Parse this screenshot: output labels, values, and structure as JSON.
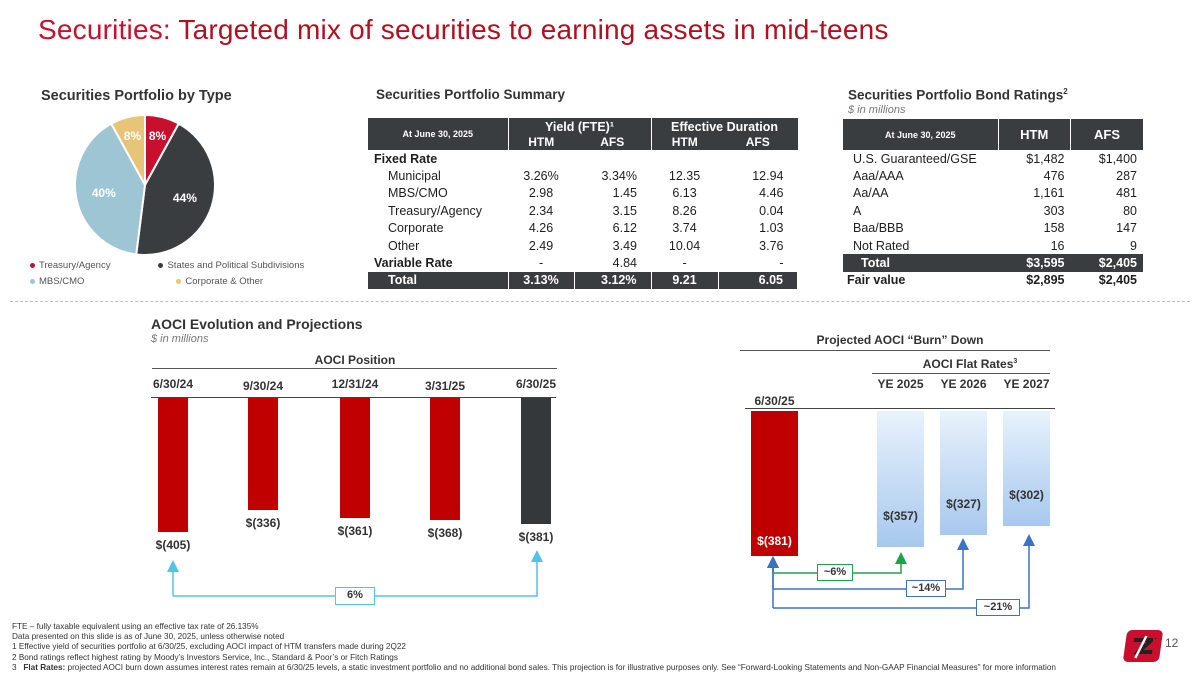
{
  "header": {
    "title_accent": "Securities:",
    "title_rest": " Targeted mix of securities to earning assets in mid-teens"
  },
  "pie": {
    "heading": "Securities Portfolio by Type",
    "slices": [
      {
        "name": "Treasury/Agency",
        "value": 8,
        "label": "8%",
        "color": "#c8102e"
      },
      {
        "name": "States and Political Subdivisions",
        "value": 44,
        "label": "44%",
        "color": "#3a3d40"
      },
      {
        "name": "MBS/CMO",
        "value": 40,
        "label": "40%",
        "color": "#9ec5d3"
      },
      {
        "name": "Corporate & Other",
        "value": 8,
        "label": "8%",
        "color": "#e8c477"
      }
    ],
    "legend": [
      "Treasury/Agency",
      "States and Political Subdivisions",
      "MBS/CMO",
      "Corporate & Other"
    ]
  },
  "summary": {
    "heading": "Securities Portfolio Summary",
    "corner": "At June 30, 2025",
    "group1": "Yield (FTE)¹",
    "group2": "Effective Duration",
    "cols": [
      "HTM",
      "AFS",
      "HTM",
      "AFS"
    ],
    "rows": [
      {
        "label": "Fixed Rate",
        "vals": [
          "",
          "",
          "",
          ""
        ],
        "style": "bold"
      },
      {
        "label": "Municipal",
        "vals": [
          "3.26%",
          "3.34%",
          "12.35",
          "12.94"
        ],
        "style": "indent"
      },
      {
        "label": "MBS/CMO",
        "vals": [
          "2.98",
          "1.45",
          "6.13",
          "4.46"
        ],
        "style": "indent"
      },
      {
        "label": "Treasury/Agency",
        "vals": [
          "2.34",
          "3.15",
          "8.26",
          "0.04"
        ],
        "style": "indent"
      },
      {
        "label": "Corporate",
        "vals": [
          "4.26",
          "6.12",
          "3.74",
          "1.03"
        ],
        "style": "indent"
      },
      {
        "label": "Other",
        "vals": [
          "2.49",
          "3.49",
          "10.04",
          "3.76"
        ],
        "style": "indent"
      },
      {
        "label": "Variable Rate",
        "vals": [
          "-",
          "4.84",
          "-",
          "-"
        ],
        "style": "bold"
      },
      {
        "label": "Total",
        "vals": [
          "3.13%",
          "3.12%",
          "9.21",
          "6.05"
        ],
        "style": "total"
      }
    ]
  },
  "ratings": {
    "heading": "Securities Portfolio Bond Ratings",
    "heading_sup": "2",
    "subheading": "$ in millions",
    "corner": "At June 30, 2025",
    "cols": [
      "HTM",
      "AFS"
    ],
    "rows": [
      {
        "label": "U.S. Guaranteed/GSE",
        "vals": [
          "$1,482",
          "$1,400"
        ]
      },
      {
        "label": "Aaa/AAA",
        "vals": [
          "476",
          "287"
        ]
      },
      {
        "label": "Aa/AA",
        "vals": [
          "1,161",
          "481"
        ]
      },
      {
        "label": "A",
        "vals": [
          "303",
          "80"
        ]
      },
      {
        "label": "Baa/BBB",
        "vals": [
          "158",
          "147"
        ]
      },
      {
        "label": "Not Rated",
        "vals": [
          "16",
          "9"
        ]
      }
    ],
    "total": {
      "label": "Total",
      "vals": [
        "$3,595",
        "$2,405"
      ]
    },
    "fair": {
      "label": "Fair value",
      "vals": [
        "$2,895",
        "$2,405"
      ]
    }
  },
  "aoci": {
    "heading": "AOCI Evolution and Projections",
    "subheading": "$ in millions",
    "position_title": "AOCI Position",
    "change_label": "6%"
  },
  "burn": {
    "title": "Projected AOCI “Burn” Down",
    "flat_title": "AOCI Flat Rates",
    "flat_sup": "3",
    "pills": [
      "~6%",
      "~14%",
      "~21%"
    ]
  },
  "chart_data": [
    {
      "type": "bar",
      "title": "AOCI Position",
      "categories": [
        "6/30/24",
        "9/30/24",
        "12/31/24",
        "3/31/25",
        "6/30/25"
      ],
      "values": [
        -405,
        -336,
        -361,
        -368,
        -381
      ],
      "labels": [
        "$(405)",
        "$(336)",
        "$(361)",
        "$(368)",
        "$(381)"
      ],
      "colors": [
        "#c00000",
        "#c00000",
        "#c00000",
        "#c00000",
        "#35383b"
      ]
    },
    {
      "type": "bar",
      "title": "Projected AOCI “Burn” Down",
      "categories": [
        "6/30/25",
        "YE 2025",
        "YE 2026",
        "YE 2027"
      ],
      "values": [
        -381,
        -357,
        -327,
        -302
      ],
      "labels": [
        "$(381)",
        "$(357)",
        "$(327)",
        "$(302)"
      ],
      "colors": [
        "#c00000",
        "#bcd6f2",
        "#bcd6f2",
        "#bcd6f2"
      ]
    }
  ],
  "footnotes": [
    "FTE – fully taxable equivalent using an effective tax rate of 26.135%",
    "Data presented on this slide is as of June 30, 2025, unless otherwise noted",
    "1   Effective yield of securities portfolio at 6/30/25, excluding AOCI impact of HTM transfers made during 2Q22",
    "2   Bond ratings reflect highest rating by Moody’s Investors Service, Inc., Standard & Poor’s or Fitch Ratings"
  ],
  "footnote3_bold": "Flat Rates:",
  "footnote3_rest": " projected AOCI burn down assumes interest rates remain at 6/30/25 levels, a static investment portfolio and no additional bond sales. This projection is for illustrative purposes only. See “Forward-Looking Statements and Non-GAAP Financial Measures” for more information",
  "footnote3_num": "3",
  "page_number": "12"
}
